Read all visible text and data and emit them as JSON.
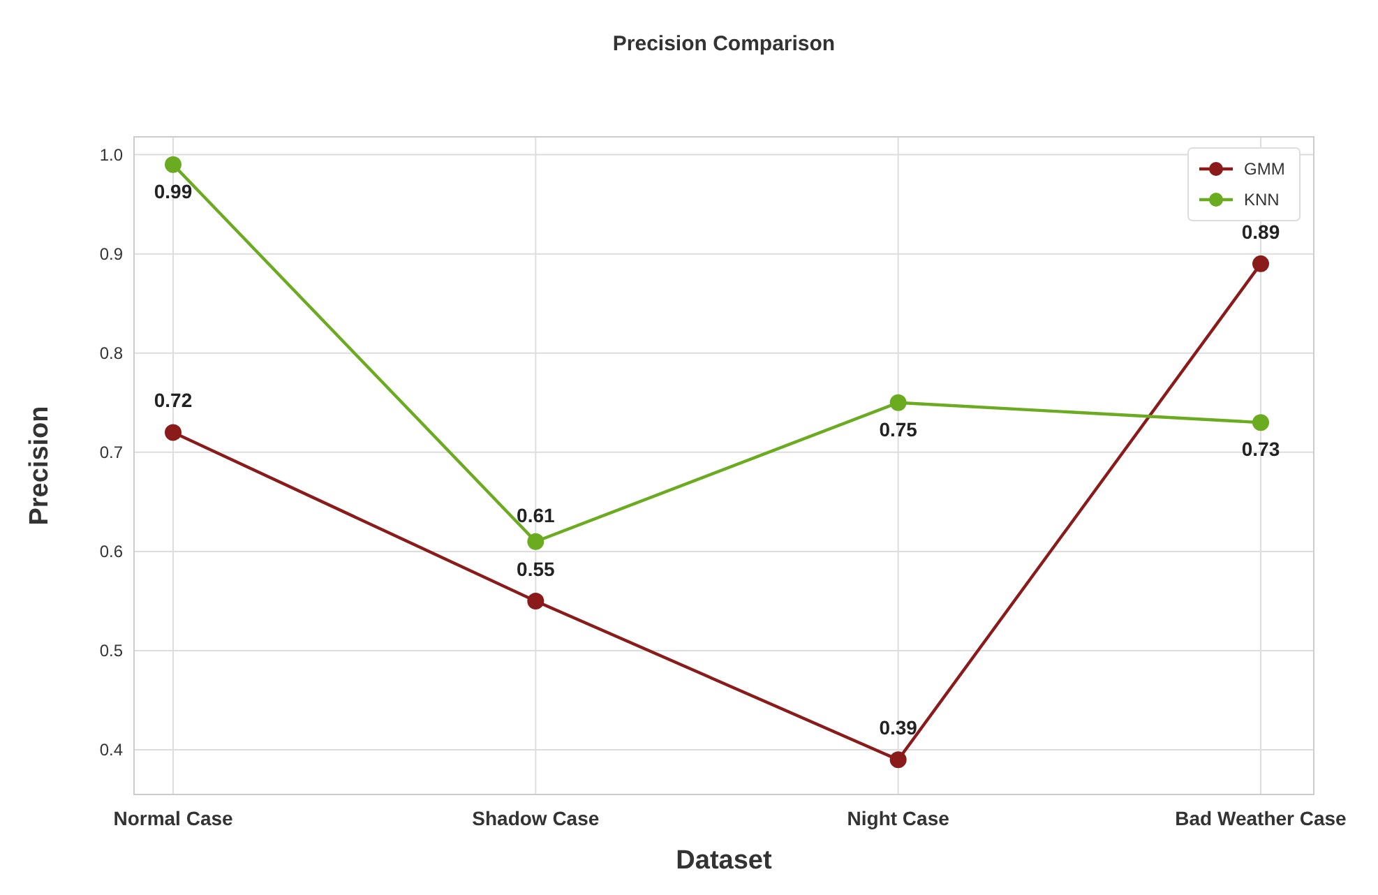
{
  "chart_data": {
    "type": "line",
    "title": "Precision Comparison",
    "xlabel": "Dataset",
    "ylabel": "Precision",
    "categories": [
      "Normal Case",
      "Shadow Case",
      "Night Case",
      "Bad Weather Case"
    ],
    "series": [
      {
        "name": "GMM",
        "color": "#8b1a1a",
        "values": [
          0.72,
          0.55,
          0.39,
          0.89
        ]
      },
      {
        "name": "KNN",
        "color": "#6aab1f",
        "values": [
          0.99,
          0.61,
          0.75,
          0.73
        ]
      }
    ],
    "ylim": [
      0.355,
      1.018
    ],
    "yticks": [
      0.4,
      0.5,
      0.6,
      0.7,
      0.8,
      0.9,
      {
        "value": 1,
        "label": "1.0"
      }
    ],
    "grid": true,
    "legend": "top right",
    "marker": "circle",
    "line_style": "solid",
    "data_labels": true
  }
}
